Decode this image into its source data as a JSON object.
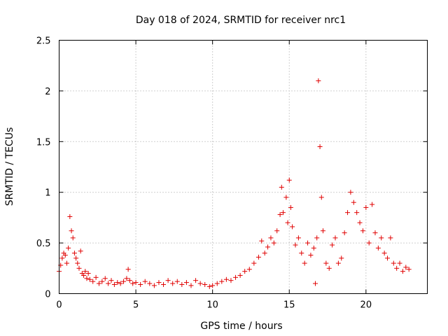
{
  "chart_data": {
    "type": "scatter",
    "title": "Day 018 of 2024, SRMTID for receiver nrc1",
    "xlabel": "GPS time / hours",
    "ylabel": "SRMTID / TECUs",
    "xlim": [
      0,
      24
    ],
    "ylim": [
      0,
      2.5
    ],
    "xticks": [
      0,
      5,
      10,
      15,
      20
    ],
    "xtick_labels": [
      "0",
      "5",
      "10",
      "15",
      "20"
    ],
    "yticks": [
      0,
      0.5,
      1,
      1.5,
      2,
      2.5
    ],
    "ytick_labels": [
      "0",
      "0.5",
      "1",
      "1.5",
      "2",
      "2.5"
    ],
    "grid": true,
    "marker": "+",
    "series_color": "#e00000",
    "series": [
      {
        "name": "SRMTID",
        "x": [
          0.0,
          0.1,
          0.2,
          0.3,
          0.4,
          0.5,
          0.6,
          0.7,
          0.8,
          0.9,
          1.0,
          1.1,
          1.2,
          1.3,
          1.4,
          1.5,
          1.6,
          1.7,
          1.8,
          1.9,
          2.0,
          2.2,
          2.4,
          2.6,
          2.8,
          3.0,
          3.2,
          3.4,
          3.6,
          3.8,
          4.0,
          4.2,
          4.4,
          4.5,
          4.6,
          4.8,
          5.0,
          5.3,
          5.6,
          5.9,
          6.2,
          6.5,
          6.8,
          7.1,
          7.4,
          7.7,
          8.0,
          8.3,
          8.6,
          8.9,
          9.2,
          9.5,
          9.8,
          10.0,
          10.3,
          10.6,
          10.9,
          11.2,
          11.5,
          11.8,
          12.1,
          12.4,
          12.7,
          13.0,
          13.2,
          13.4,
          13.6,
          13.8,
          14.0,
          14.2,
          14.4,
          14.5,
          14.6,
          14.8,
          14.9,
          15.0,
          15.1,
          15.2,
          15.4,
          15.6,
          15.8,
          16.0,
          16.2,
          16.4,
          16.6,
          16.7,
          16.8,
          16.9,
          17.0,
          17.1,
          17.2,
          17.4,
          17.6,
          17.8,
          18.0,
          18.2,
          18.4,
          18.6,
          18.8,
          19.0,
          19.2,
          19.4,
          19.6,
          19.8,
          20.0,
          20.2,
          20.4,
          20.6,
          20.8,
          21.0,
          21.2,
          21.4,
          21.6,
          21.8,
          22.0,
          22.2,
          22.4,
          22.6,
          22.8
        ],
        "y": [
          0.22,
          0.28,
          0.35,
          0.4,
          0.38,
          0.3,
          0.45,
          0.76,
          0.62,
          0.55,
          0.4,
          0.35,
          0.3,
          0.25,
          0.42,
          0.2,
          0.18,
          0.22,
          0.15,
          0.2,
          0.14,
          0.12,
          0.16,
          0.1,
          0.12,
          0.15,
          0.1,
          0.13,
          0.09,
          0.11,
          0.1,
          0.12,
          0.15,
          0.24,
          0.13,
          0.1,
          0.11,
          0.09,
          0.12,
          0.1,
          0.08,
          0.11,
          0.09,
          0.13,
          0.1,
          0.12,
          0.09,
          0.11,
          0.08,
          0.13,
          0.1,
          0.09,
          0.07,
          0.08,
          0.1,
          0.12,
          0.14,
          0.13,
          0.16,
          0.18,
          0.22,
          0.24,
          0.3,
          0.36,
          0.52,
          0.4,
          0.46,
          0.55,
          0.5,
          0.62,
          0.78,
          1.05,
          0.8,
          0.95,
          0.7,
          1.12,
          0.85,
          0.66,
          0.48,
          0.55,
          0.4,
          0.3,
          0.5,
          0.38,
          0.45,
          0.1,
          0.55,
          2.1,
          1.45,
          0.95,
          0.62,
          0.3,
          0.25,
          0.48,
          0.55,
          0.3,
          0.35,
          0.6,
          0.8,
          1.0,
          0.9,
          0.8,
          0.7,
          0.62,
          0.85,
          0.5,
          0.88,
          0.6,
          0.45,
          0.55,
          0.4,
          0.35,
          0.55,
          0.3,
          0.25,
          0.3,
          0.22,
          0.26,
          0.24
        ]
      }
    ]
  }
}
